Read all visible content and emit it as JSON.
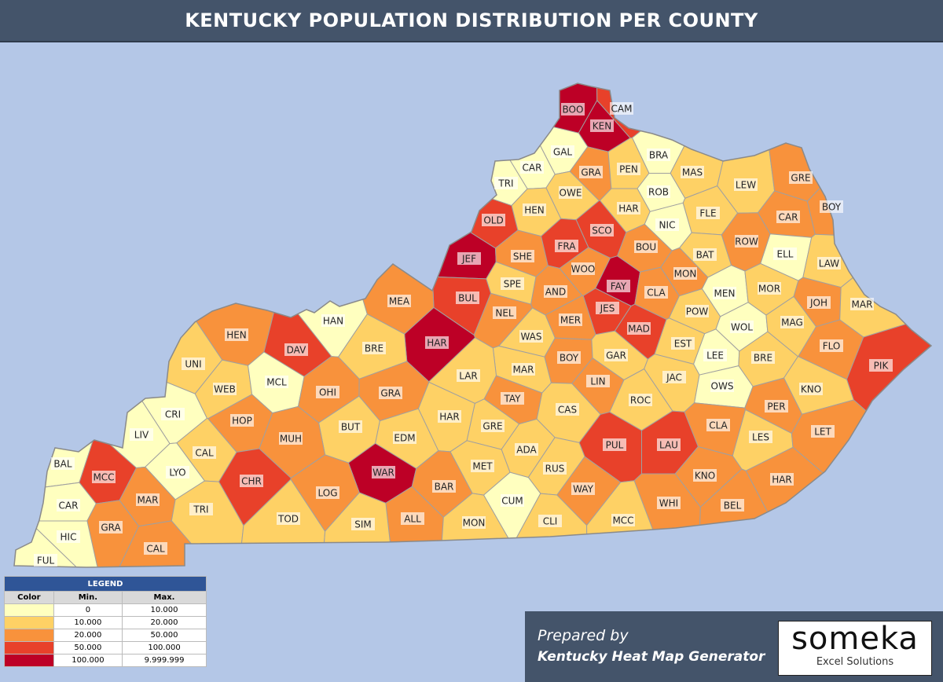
{
  "header": {
    "title": "KENTUCKY POPULATION DISTRIBUTION PER COUNTY"
  },
  "legend": {
    "title": "LEGEND",
    "columns": [
      "Color",
      "Min.",
      "Max."
    ],
    "rows": [
      {
        "color": "#ffffbf",
        "min": "0",
        "max": "10.000"
      },
      {
        "color": "#fed165",
        "min": "10.000",
        "max": "20.000"
      },
      {
        "color": "#f8923c",
        "min": "20.000",
        "max": "50.000"
      },
      {
        "color": "#e8412a",
        "min": "50.000",
        "max": "100.000"
      },
      {
        "color": "#bd0026",
        "min": "100.000",
        "max": "9.999.999"
      }
    ]
  },
  "map": {
    "counties": [
      {
        "label": "BOO",
        "color": "#bd0026"
      },
      {
        "label": "KEN",
        "color": "#bd0026"
      },
      {
        "label": "CAM",
        "color": "#e8412a"
      },
      {
        "label": "GAL",
        "color": "#ffffbf"
      },
      {
        "label": "CAR",
        "color": "#ffffbf"
      },
      {
        "label": "TRI",
        "color": "#ffffbf"
      },
      {
        "label": "BRA",
        "color": "#ffffbf"
      },
      {
        "label": "GRA",
        "color": "#f8923c"
      },
      {
        "label": "PEN",
        "color": "#fed165"
      },
      {
        "label": "MAS",
        "color": "#fed165"
      },
      {
        "label": "LEW",
        "color": "#fed165"
      },
      {
        "label": "GRE",
        "color": "#f8923c"
      },
      {
        "label": "ROB",
        "color": "#ffffbf"
      },
      {
        "label": "OWE",
        "color": "#fed165"
      },
      {
        "label": "HEN",
        "color": "#fed165"
      },
      {
        "label": "HAR",
        "color": "#fed165"
      },
      {
        "label": "FLE",
        "color": "#fed165"
      },
      {
        "label": "NIC",
        "color": "#ffffbf"
      },
      {
        "label": "CAR",
        "color": "#f8923c"
      },
      {
        "label": "BOY",
        "color": "#f8923c"
      },
      {
        "label": "OLD",
        "color": "#e8412a"
      },
      {
        "label": "SCO",
        "color": "#e8412a"
      },
      {
        "label": "BOU",
        "color": "#f8923c"
      },
      {
        "label": "ROW",
        "color": "#f8923c"
      },
      {
        "label": "ELL",
        "color": "#ffffbf"
      },
      {
        "label": "JEF",
        "color": "#bd0026"
      },
      {
        "label": "SHE",
        "color": "#f8923c"
      },
      {
        "label": "FRA",
        "color": "#e8412a"
      },
      {
        "label": "BAT",
        "color": "#fed165"
      },
      {
        "label": "LAW",
        "color": "#fed165"
      },
      {
        "label": "WOO",
        "color": "#f8923c"
      },
      {
        "label": "FAY",
        "color": "#bd0026"
      },
      {
        "label": "MON",
        "color": "#f8923c"
      },
      {
        "label": "SPE",
        "color": "#fed165"
      },
      {
        "label": "AND",
        "color": "#f8923c"
      },
      {
        "label": "BUL",
        "color": "#e8412a"
      },
      {
        "label": "MEN",
        "color": "#ffffbf"
      },
      {
        "label": "MOR",
        "color": "#fed165"
      },
      {
        "label": "MEA",
        "color": "#f8923c"
      },
      {
        "label": "JOH",
        "color": "#f8923c"
      },
      {
        "label": "MAR",
        "color": "#fed165"
      },
      {
        "label": "CLA",
        "color": "#f8923c"
      },
      {
        "label": "JES",
        "color": "#e8412a"
      },
      {
        "label": "NEL",
        "color": "#f8923c"
      },
      {
        "label": "POW",
        "color": "#fed165"
      },
      {
        "label": "MER",
        "color": "#f8923c"
      },
      {
        "label": "MAD",
        "color": "#e8412a"
      },
      {
        "label": "WOL",
        "color": "#ffffbf"
      },
      {
        "label": "MAG",
        "color": "#fed165"
      },
      {
        "label": "HAN",
        "color": "#ffffbf"
      },
      {
        "label": "HEN",
        "color": "#f8923c"
      },
      {
        "label": "DAV",
        "color": "#e8412a"
      },
      {
        "label": "HAR",
        "color": "#bd0026"
      },
      {
        "label": "WAS",
        "color": "#fed165"
      },
      {
        "label": "EST",
        "color": "#fed165"
      },
      {
        "label": "FLO",
        "color": "#f8923c"
      },
      {
        "label": "PIK",
        "color": "#e8412a"
      },
      {
        "label": "BRE",
        "color": "#fed165"
      },
      {
        "label": "UNI",
        "color": "#fed165"
      },
      {
        "label": "BOY",
        "color": "#f8923c"
      },
      {
        "label": "GAR",
        "color": "#fed165"
      },
      {
        "label": "LEE",
        "color": "#ffffbf"
      },
      {
        "label": "BRE",
        "color": "#fed165"
      },
      {
        "label": "MAR",
        "color": "#fed165"
      },
      {
        "label": "LAR",
        "color": "#fed165"
      },
      {
        "label": "LIN",
        "color": "#f8923c"
      },
      {
        "label": "JAC",
        "color": "#fed165"
      },
      {
        "label": "KNO",
        "color": "#fed165"
      },
      {
        "label": "WEB",
        "color": "#fed165"
      },
      {
        "label": "MCL",
        "color": "#ffffbf"
      },
      {
        "label": "OHI",
        "color": "#f8923c"
      },
      {
        "label": "GRA",
        "color": "#f8923c"
      },
      {
        "label": "OWS",
        "color": "#ffffbf"
      },
      {
        "label": "TAY",
        "color": "#f8923c"
      },
      {
        "label": "ROC",
        "color": "#fed165"
      },
      {
        "label": "CRI",
        "color": "#ffffbf"
      },
      {
        "label": "HOP",
        "color": "#f8923c"
      },
      {
        "label": "CAS",
        "color": "#fed165"
      },
      {
        "label": "PER",
        "color": "#f8923c"
      },
      {
        "label": "LES",
        "color": "#fed165"
      },
      {
        "label": "LET",
        "color": "#f8923c"
      },
      {
        "label": "HAR",
        "color": "#fed165"
      },
      {
        "label": "CLA",
        "color": "#f8923c"
      },
      {
        "label": "GRE",
        "color": "#fed165"
      },
      {
        "label": "BUT",
        "color": "#fed165"
      },
      {
        "label": "EDM",
        "color": "#fed165"
      },
      {
        "label": "MUH",
        "color": "#f8923c"
      },
      {
        "label": "LIV",
        "color": "#ffffbf"
      },
      {
        "label": "PUL",
        "color": "#e8412a"
      },
      {
        "label": "LAU",
        "color": "#e8412a"
      },
      {
        "label": "CAL",
        "color": "#fed165"
      },
      {
        "label": "ADA",
        "color": "#fed165"
      },
      {
        "label": "BAL",
        "color": "#ffffbf"
      },
      {
        "label": "MCC",
        "color": "#e8412a"
      },
      {
        "label": "LYO",
        "color": "#ffffbf"
      },
      {
        "label": "CHR",
        "color": "#e8412a"
      },
      {
        "label": "MET",
        "color": "#fed165"
      },
      {
        "label": "RUS",
        "color": "#fed165"
      },
      {
        "label": "WAR",
        "color": "#bd0026"
      },
      {
        "label": "KNO",
        "color": "#f8923c"
      },
      {
        "label": "HAR",
        "color": "#f8923c"
      },
      {
        "label": "MAR",
        "color": "#f8923c"
      },
      {
        "label": "BAR",
        "color": "#f8923c"
      },
      {
        "label": "WAY",
        "color": "#f8923c"
      },
      {
        "label": "LOG",
        "color": "#f8923c"
      },
      {
        "label": "CAR",
        "color": "#ffffbf"
      },
      {
        "label": "CUM",
        "color": "#ffffbf"
      },
      {
        "label": "WHI",
        "color": "#f8923c"
      },
      {
        "label": "BEL",
        "color": "#f8923c"
      },
      {
        "label": "TRI",
        "color": "#fed165"
      },
      {
        "label": "TOD",
        "color": "#fed165"
      },
      {
        "label": "GRA",
        "color": "#f8923c"
      },
      {
        "label": "ALL",
        "color": "#f8923c"
      },
      {
        "label": "MON",
        "color": "#fed165"
      },
      {
        "label": "CLI",
        "color": "#fed165"
      },
      {
        "label": "MCC",
        "color": "#fed165"
      },
      {
        "label": "SIM",
        "color": "#fed165"
      },
      {
        "label": "HIC",
        "color": "#ffffbf"
      },
      {
        "label": "CAL",
        "color": "#f8923c"
      },
      {
        "label": "FUL",
        "color": "#ffffbf"
      }
    ]
  },
  "footer": {
    "prepared_by": "Prepared by",
    "product": "Kentucky Heat Map Generator",
    "logo": {
      "name": "someka",
      "tagline": "Excel Solutions"
    }
  }
}
